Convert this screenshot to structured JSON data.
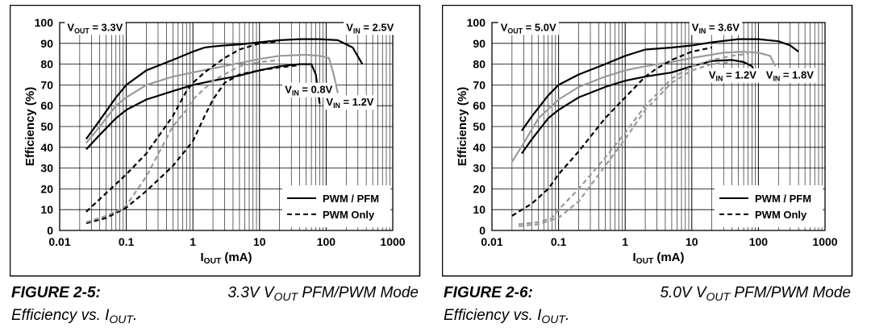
{
  "figures": [
    {
      "caption": {
        "label": "FIGURE 2-5:",
        "text_a": "3.3V V",
        "text_a_sub": "OUT",
        "text_b": " PFM/PWM Mode",
        "line2": "Efficiency vs. I",
        "line2_sub": "OUT",
        "line2_end": "."
      }
    },
    {
      "caption": {
        "label": "FIGURE 2-6:",
        "text_a": "5.0V V",
        "text_a_sub": "OUT",
        "text_b": " PFM/PWM Mode",
        "line2": "Efficiency vs. I",
        "line2_sub": "OUT",
        "line2_end": "."
      }
    }
  ],
  "chart_data": [
    {
      "type": "line",
      "xscale": "log",
      "xlim": [
        0.01,
        1000
      ],
      "ylim": [
        0,
        100
      ],
      "xticks": [
        "0.01",
        "0.1",
        "1",
        "10",
        "100",
        "1000"
      ],
      "yticks": [
        "0",
        "10",
        "20",
        "30",
        "40",
        "50",
        "60",
        "70",
        "80",
        "90",
        "100"
      ],
      "xlabel": {
        "main": "I",
        "sub": "OUT",
        "rest": " (mA)"
      },
      "ylabel": "Efficiency (%)",
      "grid": true,
      "legend": {
        "placement": "bottom-right",
        "entries": [
          {
            "label": "PWM / PFM",
            "dash": "solid"
          },
          {
            "label": "PWM Only",
            "dash": "dashed"
          }
        ]
      },
      "annotations": [
        {
          "main": "V",
          "sub": "OUT",
          "rest": " = 3.3V",
          "at": [
            0.013,
            96
          ]
        },
        {
          "main": "V",
          "sub": "IN",
          "rest": " = 2.5V",
          "at": [
            200,
            96
          ]
        },
        {
          "main": "V",
          "sub": "IN",
          "rest": " = 0.8V",
          "at": [
            24,
            66
          ]
        },
        {
          "main": "V",
          "sub": "IN",
          "rest": " = 1.2V",
          "at": [
            100,
            60
          ]
        }
      ],
      "colors": {
        "black": "#000000",
        "gray": "#9a9a9a"
      },
      "series": [
        {
          "color": "black",
          "dash": "solid",
          "x": [
            0.025,
            0.04,
            0.07,
            0.1,
            0.2,
            0.5,
            1,
            1.5,
            2,
            3,
            5,
            10,
            20,
            40,
            80,
            150,
            250,
            350
          ],
          "y": [
            44,
            53,
            64,
            70,
            77,
            82,
            86,
            88,
            88.5,
            89,
            89.5,
            90.5,
            91.5,
            92,
            92,
            91.5,
            88,
            80
          ]
        },
        {
          "color": "black",
          "dash": "solid",
          "x": [
            0.025,
            0.04,
            0.07,
            0.1,
            0.2,
            0.5,
            1,
            2,
            5,
            10,
            20,
            40,
            60,
            70,
            80
          ],
          "y": [
            39,
            46,
            54,
            58,
            63,
            67,
            70,
            72,
            74.5,
            77,
            79,
            80,
            80,
            75,
            61
          ]
        },
        {
          "color": "gray",
          "dash": "solid",
          "x": [
            0.025,
            0.04,
            0.07,
            0.1,
            0.2,
            0.5,
            1,
            2,
            5,
            10,
            20,
            50,
            80,
            110,
            130,
            150
          ],
          "y": [
            42,
            50,
            60,
            64,
            70,
            74,
            76,
            78,
            80.5,
            82.5,
            84,
            84.5,
            84,
            83,
            75,
            66
          ]
        },
        {
          "color": "black",
          "dash": "dashed",
          "x": [
            0.025,
            0.05,
            0.1,
            0.2,
            0.5,
            0.8,
            1,
            1.5,
            2,
            3,
            5,
            10,
            20
          ],
          "y": [
            9,
            18,
            27,
            37,
            55,
            67,
            71,
            76,
            79,
            83,
            87,
            90,
            91
          ]
        },
        {
          "color": "black",
          "dash": "dashed",
          "x": [
            0.025,
            0.05,
            0.1,
            0.2,
            0.5,
            1,
            1.5,
            2,
            3,
            5,
            10,
            20,
            40
          ],
          "y": [
            3.5,
            6,
            11,
            19,
            31,
            43,
            55,
            63,
            71,
            75,
            77,
            78.5,
            79.5
          ]
        },
        {
          "color": "gray",
          "dash": "dashed",
          "x": [
            0.025,
            0.05,
            0.08,
            0.1,
            0.2,
            0.5,
            0.8,
            1,
            2,
            5,
            10,
            20
          ],
          "y": [
            4,
            7,
            10,
            12,
            26,
            50,
            58,
            63,
            72,
            79,
            81,
            82
          ]
        }
      ]
    },
    {
      "type": "line",
      "xscale": "log",
      "xlim": [
        0.01,
        1000
      ],
      "ylim": [
        0,
        100
      ],
      "xticks": [
        "0.01",
        "0.1",
        "1",
        "10",
        "100",
        "1000"
      ],
      "yticks": [
        "0",
        "10",
        "20",
        "30",
        "40",
        "50",
        "60",
        "70",
        "80",
        "90",
        "100"
      ],
      "xlabel": {
        "main": "I",
        "sub": "OUT",
        "rest": " (mA)"
      },
      "ylabel": "Efficiency (%)",
      "grid": true,
      "legend": {
        "placement": "bottom-right",
        "entries": [
          {
            "label": "PWM / PFM",
            "dash": "solid"
          },
          {
            "label": "PWM Only",
            "dash": "dashed"
          }
        ]
      },
      "annotations": [
        {
          "main": "V",
          "sub": "OUT",
          "rest": " = 5.0V",
          "at": [
            0.0135,
            96
          ]
        },
        {
          "main": "V",
          "sub": "IN",
          "rest": " = 3.6V",
          "at": [
            10,
            96
          ]
        },
        {
          "main": "V",
          "sub": "IN",
          "rest": " = 1.2V",
          "at": [
            18,
            73
          ]
        },
        {
          "main": "V",
          "sub": "IN",
          "rest": " = 1.8V",
          "at": [
            130,
            73
          ]
        }
      ],
      "colors": {
        "black": "#000000",
        "gray": "#9a9a9a"
      },
      "series": [
        {
          "color": "black",
          "dash": "solid",
          "x": [
            0.028,
            0.04,
            0.07,
            0.1,
            0.2,
            0.5,
            1,
            2,
            5,
            10,
            20,
            50,
            100,
            200,
            300,
            400
          ],
          "y": [
            48,
            55,
            65,
            70,
            75,
            80,
            84,
            87,
            88,
            89,
            90.5,
            92,
            92,
            91,
            89,
            86
          ]
        },
        {
          "color": "black",
          "dash": "solid",
          "x": [
            0.028,
            0.04,
            0.07,
            0.1,
            0.2,
            0.5,
            1,
            2,
            5,
            10,
            20,
            40,
            60,
            80,
            100
          ],
          "y": [
            37,
            44,
            54,
            58,
            64,
            69,
            72,
            74,
            76,
            79,
            81.5,
            82,
            81,
            79,
            73
          ]
        },
        {
          "color": "gray",
          "dash": "solid",
          "x": [
            0.02,
            0.03,
            0.05,
            0.1,
            0.2,
            0.5,
            1,
            2,
            5,
            10,
            30,
            60,
            100,
            150,
            180
          ],
          "y": [
            33,
            42,
            54,
            63,
            69,
            74,
            77,
            79,
            81,
            83,
            85.5,
            86,
            85.5,
            84,
            79
          ]
        },
        {
          "color": "black",
          "dash": "dashed",
          "x": [
            0.02,
            0.04,
            0.07,
            0.1,
            0.2,
            0.5,
            1,
            2,
            3,
            5,
            10,
            20
          ],
          "y": [
            7,
            13,
            20,
            27,
            38,
            54,
            64,
            74,
            78,
            82,
            86,
            88
          ]
        },
        {
          "color": "gray",
          "dash": "dashed",
          "x": [
            0.025,
            0.05,
            0.08,
            0.1,
            0.2,
            0.5,
            1,
            2,
            5,
            10,
            20,
            40,
            70
          ],
          "y": [
            3,
            4,
            6,
            10,
            20,
            35,
            47,
            60,
            73,
            79,
            82,
            84,
            85
          ]
        },
        {
          "color": "gray",
          "dash": "dashed",
          "x": [
            0.025,
            0.05,
            0.1,
            0.2,
            0.5,
            1,
            2,
            5,
            10,
            20,
            40
          ],
          "y": [
            2,
            3,
            6,
            14,
            31,
            44,
            58,
            71,
            77,
            80,
            81
          ]
        }
      ]
    }
  ]
}
